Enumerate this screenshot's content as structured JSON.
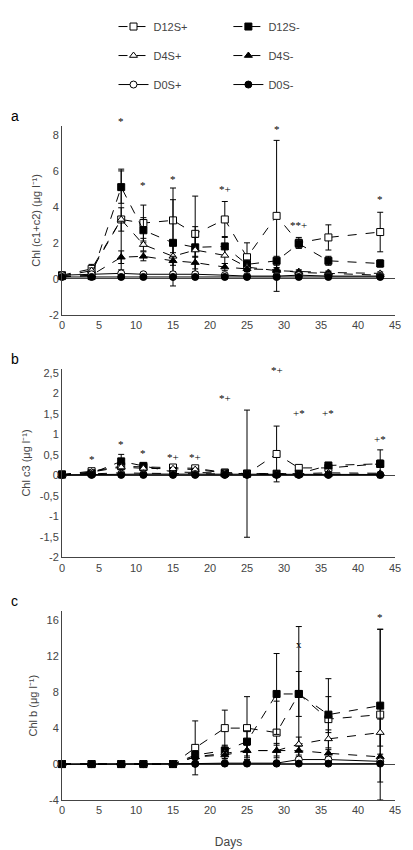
{
  "chart_data": [
    {
      "type": "line",
      "title": "a",
      "ylabel": "Chl (c1+c2) (μg l⁻¹)",
      "xlim": [
        0,
        45
      ],
      "xticks": [
        0,
        5,
        10,
        15,
        20,
        25,
        30,
        35,
        40,
        45
      ],
      "ylim": [
        -2,
        8.5
      ],
      "yticks": [
        -2,
        0,
        2,
        4,
        6,
        8
      ],
      "grid": false,
      "legend": "top",
      "x": [
        0,
        4,
        8,
        11,
        15,
        18,
        22,
        25,
        29,
        32,
        36,
        43
      ],
      "series": [
        {
          "name": "D12S+",
          "color": "white",
          "marker": "square",
          "line_style": "dashed",
          "values": [
            0.2,
            0.55,
            3.3,
            3.1,
            3.25,
            2.5,
            3.3,
            1.2,
            3.5,
            2.0,
            2.3,
            2.6
          ],
          "yerr": [
            0.05,
            0.25,
            2.8,
            1.0,
            1.8,
            2.1,
            1.0,
            0.8,
            4.2,
            0.3,
            0.7,
            1.1
          ]
        },
        {
          "name": "D12S-",
          "color": "black",
          "marker": "square",
          "line_style": "dashed",
          "values": [
            0.15,
            0.15,
            5.1,
            2.7,
            2.0,
            1.75,
            1.8,
            0.8,
            1.0,
            1.95,
            1.0,
            0.85
          ],
          "yerr": [
            0.05,
            0.05,
            0.9,
            0.7,
            2.4,
            0.55,
            0.55,
            0.25,
            0.25,
            0.25,
            0.25,
            0.2
          ]
        },
        {
          "name": "D4S+",
          "color": "white",
          "marker": "triangle-up",
          "line_style": "dashed",
          "values": [
            0.15,
            0.45,
            3.3,
            1.9,
            1.25,
            1.6,
            1.3,
            0.65,
            0.45,
            0.4,
            0.35,
            0.3
          ],
          "yerr": [
            0.05,
            0.15,
            0.65,
            0.35,
            0.85,
            1.3,
            0.45,
            0.15,
            0.15,
            0.1,
            0.08,
            0.08
          ]
        },
        {
          "name": "D4S-",
          "color": "black",
          "marker": "triangle-up",
          "line_style": "dashed",
          "values": [
            0.1,
            0.2,
            1.2,
            1.25,
            1.0,
            0.9,
            0.65,
            0.55,
            0.5,
            0.35,
            0.3,
            0.2
          ],
          "yerr": [
            0.02,
            0.08,
            0.35,
            0.25,
            0.25,
            0.35,
            0.2,
            0.15,
            0.12,
            0.08,
            0.08,
            0.04
          ]
        },
        {
          "name": "D0S+",
          "color": "white",
          "marker": "circle",
          "line_style": "solid",
          "values": [
            0.2,
            0.25,
            0.3,
            0.25,
            0.25,
            0.25,
            0.2,
            0.15,
            0.15,
            0.2,
            0.15,
            0.15
          ],
          "yerr": [
            0.02,
            0.05,
            0.07,
            0.04,
            0.04,
            0.04,
            0.04,
            0.04,
            0.04,
            0.04,
            0.04,
            0.04
          ]
        },
        {
          "name": "D0S-",
          "color": "black",
          "marker": "circle",
          "line_style": "solid",
          "values": [
            0.1,
            0.1,
            0.1,
            0.1,
            0.1,
            0.1,
            0.1,
            0.1,
            0.1,
            0.1,
            0.1,
            0.1
          ],
          "yerr": [
            0.01,
            0.03,
            0.03,
            0.03,
            0.03,
            0.03,
            0.03,
            0.03,
            0.03,
            0.03,
            0.03,
            0.03
          ]
        }
      ],
      "annotations": [
        {
          "x": 8,
          "y": 8.35,
          "text": "*"
        },
        {
          "x": 11,
          "y": 4.8,
          "text": "*"
        },
        {
          "x": 15,
          "y": 5.1,
          "text": "*"
        },
        {
          "x": 22,
          "y": 4.55,
          "text": "*+"
        },
        {
          "x": 29,
          "y": 7.9,
          "text": "*"
        },
        {
          "x": 32,
          "y": 2.55,
          "text": "**+"
        },
        {
          "x": 43,
          "y": 4.0,
          "text": "*"
        }
      ]
    },
    {
      "type": "line",
      "title": "b",
      "ylabel": "Chl c3 (μg l⁻¹)",
      "xlim": [
        0,
        45
      ],
      "xticks": [
        0,
        5,
        10,
        15,
        20,
        25,
        30,
        35,
        40,
        45
      ],
      "ylim": [
        -2,
        2.6
      ],
      "yticks": [
        -2,
        {
          "value": -1.5,
          "label": "-1,5"
        },
        -1,
        {
          "value": -0.5,
          "label": "-0,5"
        },
        0,
        {
          "value": 0.5,
          "label": "0,5"
        },
        1,
        {
          "value": 1.5,
          "label": "1,5"
        },
        2,
        {
          "value": 2.5,
          "label": "2,5"
        }
      ],
      "grid": false,
      "x": [
        0,
        4,
        8,
        11,
        15,
        18,
        22,
        25,
        29,
        32,
        36,
        43
      ],
      "series": [
        {
          "name": "D12S+",
          "color": "white",
          "marker": "square",
          "line_style": "dashed",
          "values": [
            0.02,
            0.1,
            0.22,
            0.2,
            0.19,
            0.17,
            0.07,
            0.04,
            0.52,
            0.18,
            0.18,
            0.28
          ],
          "yerr": [
            0.01,
            0.04,
            0.07,
            0.05,
            0.04,
            0.04,
            0.02,
            1.55,
            0.68,
            0.04,
            0.04,
            0.34
          ]
        },
        {
          "name": "D12S-",
          "color": "black",
          "marker": "square",
          "line_style": "dashed",
          "values": [
            0.02,
            0.05,
            0.34,
            0.23,
            0.08,
            0.07,
            0.05,
            0.04,
            0.04,
            0.04,
            0.24,
            0.28
          ],
          "yerr": [
            0.01,
            0.02,
            0.17,
            0.07,
            0.03,
            0.02,
            0.01,
            0.01,
            0.01,
            0.01,
            0.07,
            0.09
          ]
        },
        {
          "name": "D4S+",
          "color": "white",
          "marker": "triangle-up",
          "line_style": "dashed",
          "values": [
            0.01,
            0.08,
            0.2,
            0.17,
            0.16,
            0.14,
            0.06,
            0.04,
            0.04,
            0.04,
            0.06,
            0.05
          ],
          "yerr": [
            0.01,
            0.03,
            0.05,
            0.04,
            0.03,
            0.03,
            0.01,
            0.01,
            0.01,
            0.01,
            0.01,
            0.01
          ]
        },
        {
          "name": "D4S-",
          "color": "black",
          "marker": "triangle-up",
          "line_style": "dashed",
          "values": [
            0.01,
            0.03,
            0.06,
            0.05,
            0.04,
            0.03,
            0.02,
            0.02,
            0.02,
            0.02,
            0.02,
            0.03
          ],
          "yerr": [
            0.0,
            0.01,
            0.01,
            0.01,
            0.01,
            0.01,
            0.0,
            0.0,
            0.0,
            0.0,
            0.0,
            0.01
          ]
        },
        {
          "name": "D0S+",
          "color": "white",
          "marker": "circle",
          "line_style": "solid",
          "values": [
            0.01,
            0.02,
            0.04,
            0.03,
            0.03,
            0.03,
            0.02,
            0.02,
            0.02,
            0.02,
            0.02,
            0.02
          ],
          "yerr": [
            0.0,
            0.01,
            0.01,
            0.01,
            0.01,
            0.01,
            0.0,
            0.0,
            0.0,
            0.0,
            0.0,
            0.0
          ]
        },
        {
          "name": "D0S-",
          "color": "black",
          "marker": "circle",
          "line_style": "solid",
          "values": [
            0.01,
            0.01,
            0.01,
            0.01,
            0.01,
            0.01,
            0.01,
            0.01,
            0.01,
            0.01,
            0.01,
            0.01
          ],
          "yerr": [
            0.0,
            0.0,
            0.0,
            0.0,
            0.0,
            0.0,
            0.0,
            0.0,
            0.0,
            0.0,
            0.0,
            0.0
          ]
        }
      ],
      "annotations": [
        {
          "x": 4,
          "y": 0.2,
          "text": "*"
        },
        {
          "x": 8,
          "y": 0.56,
          "text": "*"
        },
        {
          "x": 11,
          "y": 0.35,
          "text": "*"
        },
        {
          "x": 15,
          "y": 0.26,
          "text": "*+"
        },
        {
          "x": 18,
          "y": 0.25,
          "text": "*+"
        },
        {
          "x": 22,
          "y": 1.7,
          "text": "*+"
        },
        {
          "x": 29,
          "y": 2.38,
          "text": "*+"
        },
        {
          "x": 32,
          "y": 1.32,
          "text": "+*"
        },
        {
          "x": 36,
          "y": 1.32,
          "text": "+*"
        },
        {
          "x": 43,
          "y": 0.68,
          "text": "+*"
        }
      ]
    },
    {
      "type": "line",
      "title": "c",
      "ylabel": "Chl b (μg l⁻¹)",
      "xlabel": "Days",
      "xlim": [
        0,
        45
      ],
      "xticks": [
        0,
        5,
        10,
        15,
        20,
        25,
        30,
        35,
        40,
        45
      ],
      "ylim": [
        -4,
        17
      ],
      "yticks": [
        -4,
        0,
        4,
        8,
        12,
        16
      ],
      "grid": false,
      "x": [
        0,
        4,
        8,
        11,
        15,
        18,
        22,
        25,
        29,
        32,
        36,
        43
      ],
      "series": [
        {
          "name": "D12S+",
          "color": "white",
          "marker": "square",
          "line_style": "dashed",
          "values": [
            0.0,
            0.0,
            0.0,
            0.0,
            0.0,
            1.8,
            4.0,
            4.0,
            3.5,
            7.8,
            5.0,
            5.5
          ],
          "yerr": [
            0.0,
            0.0,
            0.0,
            0.0,
            0.0,
            3.0,
            2.0,
            3.5,
            3.5,
            7.5,
            4.5,
            9.5
          ]
        },
        {
          "name": "D12S-",
          "color": "black",
          "marker": "square",
          "line_style": "dashed",
          "values": [
            0.0,
            0.0,
            0.0,
            0.0,
            0.0,
            1.0,
            1.5,
            2.5,
            7.8,
            7.8,
            5.5,
            6.5
          ],
          "yerr": [
            0.0,
            0.0,
            0.0,
            0.0,
            0.0,
            0.5,
            0.6,
            1.2,
            4.5,
            2.5,
            2.0,
            8.5
          ]
        },
        {
          "name": "D4S+",
          "color": "white",
          "marker": "triangle-up",
          "line_style": "dashed",
          "values": [
            0.0,
            0.0,
            0.0,
            0.0,
            0.0,
            0.8,
            1.2,
            1.5,
            1.5,
            2.2,
            2.8,
            3.5
          ],
          "yerr": [
            0.0,
            0.0,
            0.0,
            0.0,
            0.0,
            0.5,
            0.6,
            0.8,
            0.8,
            0.8,
            1.0,
            1.5
          ]
        },
        {
          "name": "D4S-",
          "color": "black",
          "marker": "triangle-up",
          "line_style": "dashed",
          "values": [
            0.0,
            0.0,
            0.0,
            0.0,
            0.0,
            0.8,
            1.0,
            1.5,
            1.5,
            1.5,
            1.2,
            0.8
          ],
          "yerr": [
            0.0,
            0.0,
            0.0,
            0.0,
            0.0,
            0.3,
            0.4,
            0.6,
            0.6,
            0.5,
            0.4,
            0.3
          ]
        },
        {
          "name": "D0S+",
          "color": "white",
          "marker": "circle",
          "line_style": "solid",
          "values": [
            0.0,
            0.0,
            0.0,
            0.0,
            0.0,
            0.05,
            0.1,
            0.1,
            0.1,
            0.5,
            0.5,
            0.3
          ],
          "yerr": [
            0.0,
            0.0,
            0.0,
            0.0,
            0.0,
            0.02,
            0.05,
            0.05,
            0.05,
            0.3,
            0.3,
            0.15
          ]
        },
        {
          "name": "D0S-",
          "color": "black",
          "marker": "circle",
          "line_style": "solid",
          "values": [
            0.0,
            0.0,
            0.0,
            0.0,
            0.0,
            0.02,
            0.05,
            0.05,
            0.05,
            0.05,
            0.05,
            0.05
          ],
          "yerr": [
            0.0,
            0.0,
            0.0,
            0.0,
            0.0,
            0.01,
            0.01,
            0.01,
            0.01,
            0.01,
            0.01,
            0.01
          ]
        }
      ],
      "annotations": [
        {
          "x": 32,
          "y": 12.5,
          "text": "x"
        },
        {
          "x": 43,
          "y": 15.5,
          "text": "*"
        }
      ]
    }
  ]
}
